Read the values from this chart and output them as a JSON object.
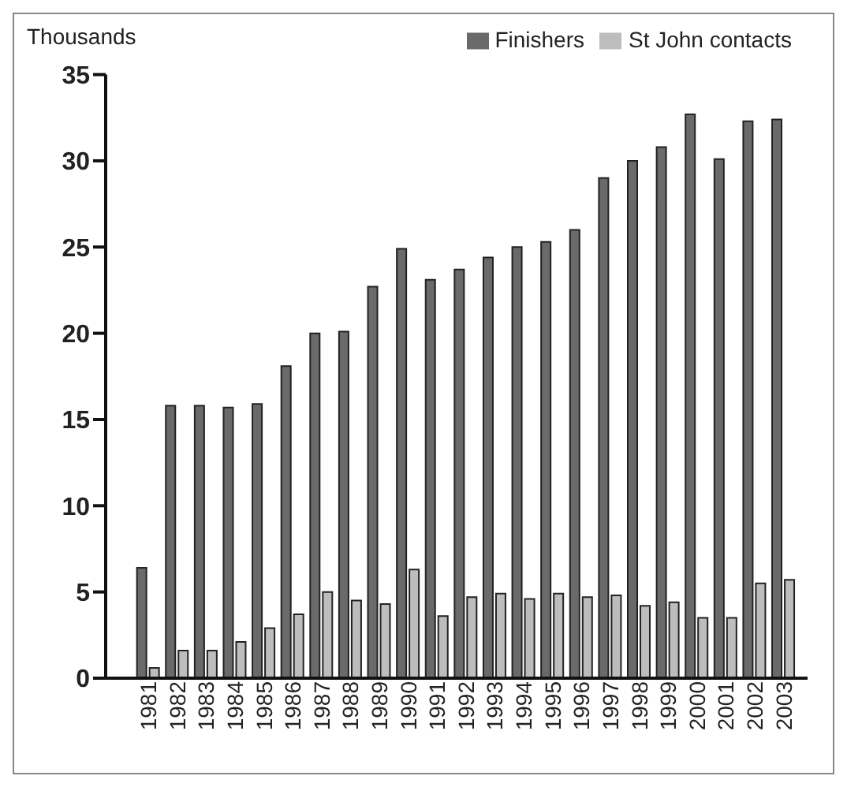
{
  "chart_data": {
    "type": "bar",
    "ylabel": "Thousands",
    "categories": [
      "1981",
      "1982",
      "1983",
      "1984",
      "1985",
      "1986",
      "1987",
      "1988",
      "1989",
      "1990",
      "1991",
      "1992",
      "1993",
      "1994",
      "1995",
      "1996",
      "1997",
      "1998",
      "1999",
      "2000",
      "2001",
      "2002",
      "2003"
    ],
    "series": [
      {
        "name": "Finishers",
        "color": "#6a6a6a",
        "values": [
          6.4,
          15.8,
          15.8,
          15.7,
          15.9,
          18.1,
          20.0,
          20.1,
          22.7,
          24.9,
          23.1,
          23.7,
          24.4,
          25.0,
          25.3,
          26.0,
          29.0,
          30.0,
          30.8,
          32.7,
          30.1,
          32.3,
          32.4
        ]
      },
      {
        "name": "St John contacts",
        "color": "#bdbdbd",
        "values": [
          0.6,
          1.6,
          1.6,
          2.1,
          2.9,
          3.7,
          5.0,
          4.5,
          4.3,
          6.3,
          3.6,
          4.7,
          4.9,
          4.6,
          4.9,
          4.7,
          4.8,
          4.2,
          4.4,
          3.5,
          3.5,
          5.5,
          5.7
        ]
      }
    ],
    "ylim": [
      0,
      35
    ],
    "yticks": [
      0,
      5,
      10,
      15,
      20,
      25,
      30,
      35
    ],
    "grid": false,
    "legend": "top right"
  }
}
